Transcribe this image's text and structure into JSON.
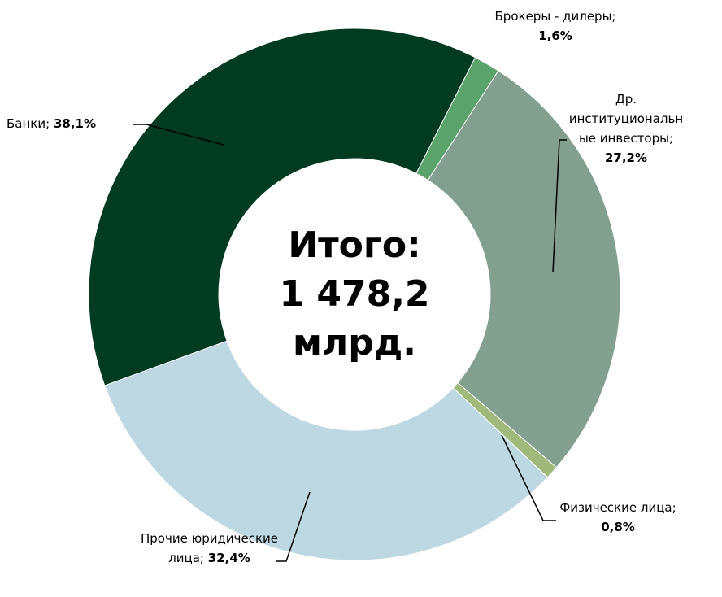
{
  "chart_data": {
    "type": "donut",
    "categories": [
      "Брокеры - дилеры;",
      "Др. институциональные инвесторы;",
      "Физические лица;",
      "Прочие юридические лица;",
      "Банки;"
    ],
    "values": [
      1.6,
      27.2,
      0.8,
      32.4,
      38.1
    ],
    "value_labels": [
      "1,6%",
      "27,2%",
      "0,8%",
      "32,4%",
      "38,1%"
    ],
    "colors": [
      "#5aa36a",
      "#839f8f",
      "#9fb97a",
      "#bdd7e3",
      "#013b21"
    ],
    "center_text": [
      "Итого:",
      "1 478,2",
      "млрд."
    ]
  }
}
